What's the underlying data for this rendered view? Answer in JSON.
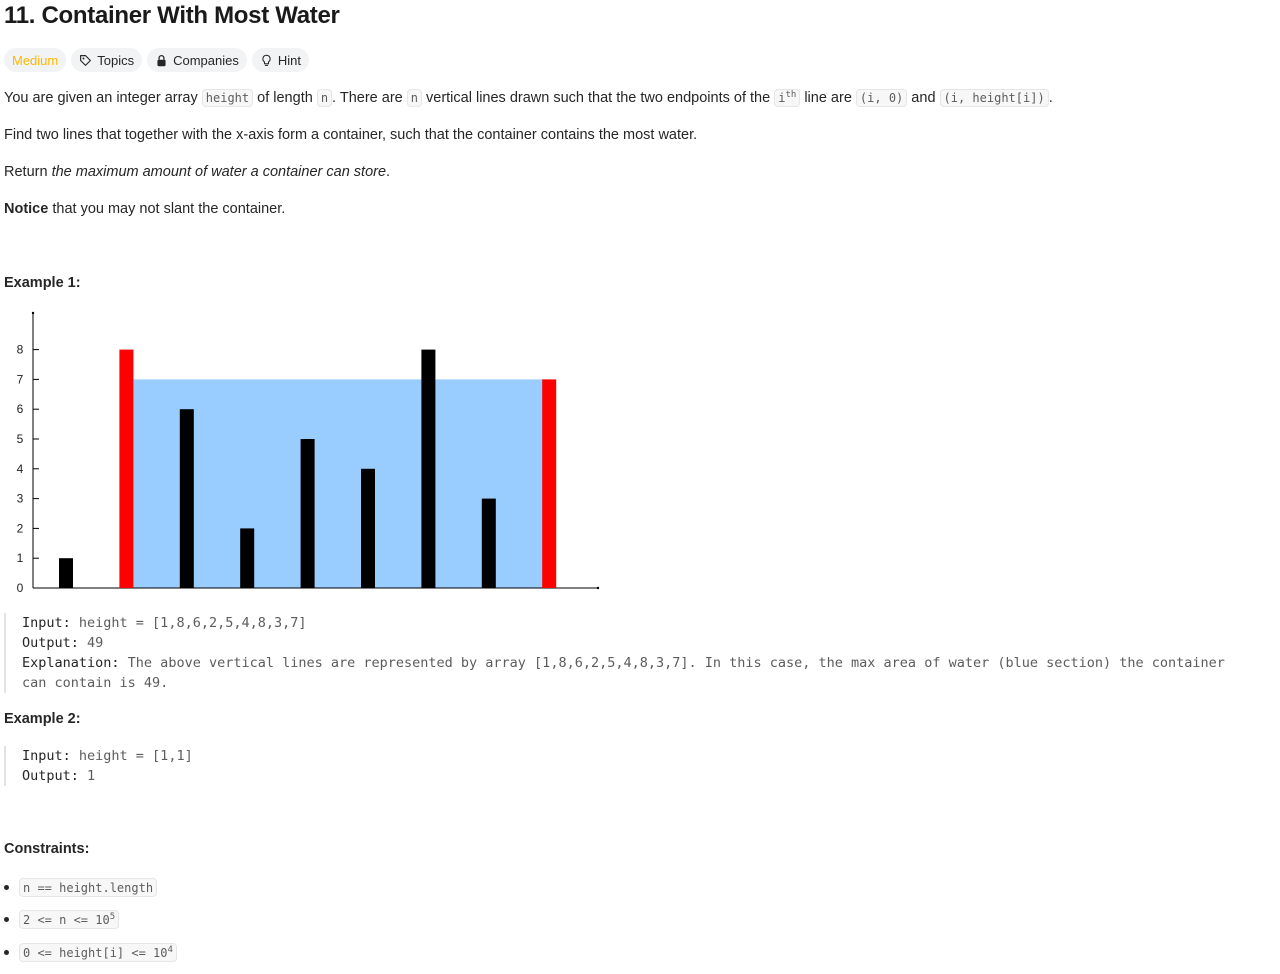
{
  "problem": {
    "title": "11. Container With Most Water",
    "difficulty": "Medium",
    "topics_label": "Topics",
    "companies_label": "Companies",
    "hint_label": "Hint"
  },
  "description": {
    "p1": {
      "t1": "You are given an integer array ",
      "c1": "height",
      "t2": " of length ",
      "c2": "n",
      "t3": ". There are ",
      "c3": "n",
      "t4": " vertical lines drawn such that the two endpoints of the ",
      "c4": "i",
      "c4sup": "th",
      "t5": " line are ",
      "c5": "(i, 0)",
      "t6": " and ",
      "c6": "(i, height[i])",
      "t7": "."
    },
    "p2": "Find two lines that together with the x-axis form a container, such that the container contains the most water.",
    "p3": {
      "t1": "Return ",
      "em": "the maximum amount of water a container can store",
      "t2": "."
    },
    "p4": {
      "b": "Notice",
      "t": " that you may not slant the container."
    }
  },
  "examples": [
    {
      "heading": "Example 1:",
      "input_label": "Input:",
      "input": " height = [1,8,6,2,5,4,8,3,7]",
      "output_label": "Output:",
      "output": " 49",
      "explanation_label": "Explanation:",
      "explanation_line1": " The above vertical lines are represented by array [1,8,6,2,5,4,8,3,7]. In this case, the max area of water (blue section) the container",
      "explanation_line2": "can contain is 49."
    },
    {
      "heading": "Example 2:",
      "input_label": "Input:",
      "input": " height = [1,1]",
      "output_label": "Output:",
      "output": " 1"
    }
  ],
  "chart_data": {
    "type": "bar",
    "x": [
      1,
      2,
      3,
      4,
      5,
      6,
      7,
      8,
      9
    ],
    "values": [
      1,
      8,
      6,
      2,
      5,
      4,
      8,
      3,
      7
    ],
    "highlight_indices": [
      1,
      8
    ],
    "water_level": 7,
    "y_ticks": [
      "0",
      "1",
      "2",
      "3",
      "4",
      "5",
      "6",
      "7",
      "8"
    ],
    "ylim": [
      0,
      9
    ],
    "colors": {
      "bar": "#000000",
      "highlight": "#ff0000",
      "water": "#99ccff"
    }
  },
  "constraints": {
    "heading": "Constraints:",
    "items": [
      {
        "code": "n == height.length",
        "sup": ""
      },
      {
        "code": "2 <= n <= 10",
        "sup": "5"
      },
      {
        "code": "0 <= height[i] <= 10",
        "sup": "4"
      }
    ]
  }
}
